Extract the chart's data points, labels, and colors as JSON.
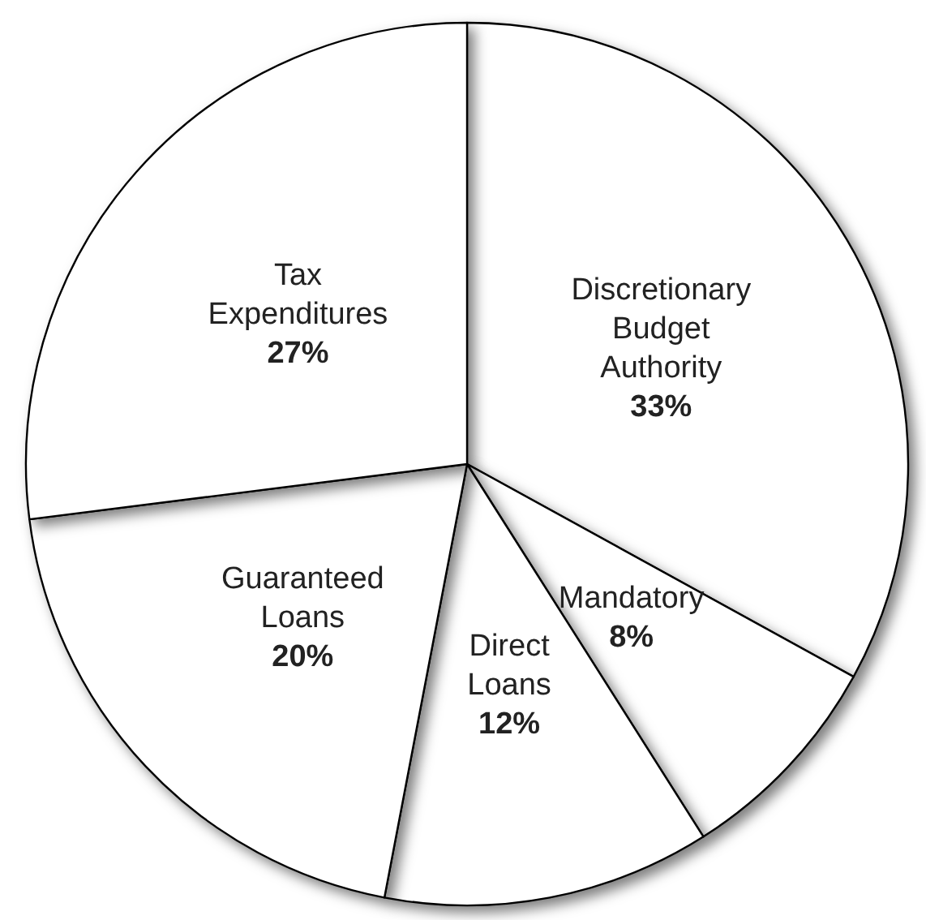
{
  "chart_data": {
    "type": "pie",
    "categories": [
      "Discretionary Budget Authority",
      "Mandatory",
      "Direct Loans",
      "Guaranteed Loans",
      "Tax Expenditures"
    ],
    "values": [
      33,
      8,
      12,
      20,
      27
    ],
    "value_labels": [
      "33%",
      "8%",
      "12%",
      "20%",
      "27%"
    ],
    "colors": [
      "#ffffff",
      "#ffffff",
      "#ffffff",
      "#ffffff",
      "#ffffff"
    ],
    "legend": false
  }
}
